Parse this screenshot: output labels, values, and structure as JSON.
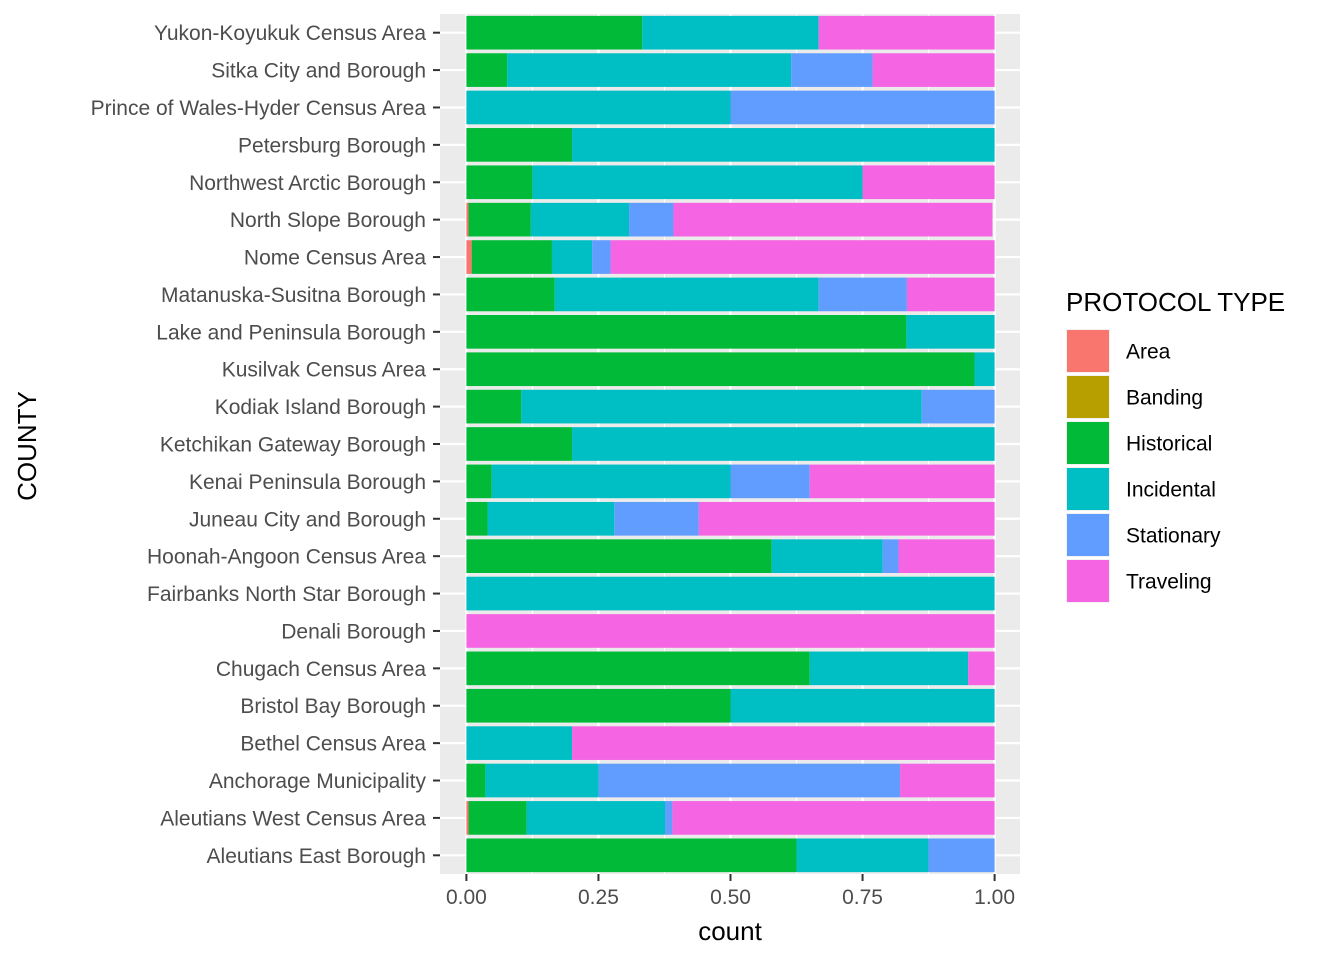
{
  "chart_data": {
    "type": "bar",
    "orientation": "horizontal",
    "stacked": "fill",
    "xlabel": "count",
    "ylabel": "COUNTY",
    "xlim": [
      0,
      1
    ],
    "x_ticks": [
      "0.00",
      "0.25",
      "0.50",
      "0.75",
      "1.00"
    ],
    "grid": true,
    "legend_position": "right",
    "legend_title": "PROTOCOL TYPE",
    "categories": [
      "Aleutians East Borough",
      "Aleutians West Census Area",
      "Anchorage Municipality",
      "Bethel Census Area",
      "Bristol Bay Borough",
      "Chugach Census Area",
      "Denali Borough",
      "Fairbanks North Star Borough",
      "Hoonah-Angoon Census Area",
      "Juneau City and Borough",
      "Kenai Peninsula Borough",
      "Ketchikan Gateway Borough",
      "Kodiak Island Borough",
      "Kusilvak Census Area",
      "Lake and Peninsula Borough",
      "Matanuska-Susitna Borough",
      "Nome Census Area",
      "North Slope Borough",
      "Northwest Arctic Borough",
      "Petersburg Borough",
      "Prince of Wales-Hyder Census Area",
      "Sitka City and Borough",
      "Yukon-Koyukuk Census Area"
    ],
    "series": [
      {
        "name": "Area",
        "color": "#F8766D",
        "values": [
          0,
          0.004,
          0,
          0,
          0,
          0,
          0,
          0,
          0,
          0,
          0,
          0,
          0,
          0,
          0,
          0,
          0.01,
          0.004,
          0,
          0,
          0,
          0,
          0
        ]
      },
      {
        "name": "Banding",
        "color": "#B79F00",
        "values": [
          0,
          0,
          0,
          0,
          0,
          0,
          0,
          0,
          0,
          0,
          0,
          0,
          0,
          0,
          0,
          0,
          0,
          0,
          0,
          0,
          0,
          0,
          0
        ]
      },
      {
        "name": "Historical",
        "color": "#00BA38",
        "values": [
          0.625,
          0.11,
          0.036,
          0,
          0.5,
          0.65,
          0,
          0,
          0.578,
          0.04,
          0.048,
          0.2,
          0.104,
          0.962,
          0.833,
          0.167,
          0.152,
          0.118,
          0.125,
          0.2,
          0,
          0.077,
          0.333
        ]
      },
      {
        "name": "Incidental",
        "color": "#00BFC4",
        "values": [
          0.25,
          0.262,
          0.214,
          0.2,
          0.5,
          0.3,
          0,
          1,
          0.21,
          0.24,
          0.452,
          0.8,
          0.758,
          0.038,
          0.167,
          0.5,
          0.076,
          0.186,
          0.625,
          0.8,
          0.5,
          0.538,
          0.334
        ]
      },
      {
        "name": "Stationary",
        "color": "#619CFF",
        "values": [
          0.125,
          0.014,
          0.571,
          0,
          0,
          0,
          0,
          0,
          0.03,
          0.16,
          0.15,
          0,
          0.138,
          0,
          0,
          0.167,
          0.035,
          0.084,
          0,
          0,
          0.5,
          0.154,
          0
        ]
      },
      {
        "name": "Traveling",
        "color": "#F564E3",
        "values": [
          0,
          0.61,
          0.179,
          0.8,
          0,
          0.05,
          1,
          0,
          0.182,
          0.56,
          0.35,
          0,
          0,
          0,
          0,
          0.166,
          0.727,
          0.604,
          0.25,
          0,
          0,
          0.231,
          0.333
        ]
      }
    ]
  }
}
